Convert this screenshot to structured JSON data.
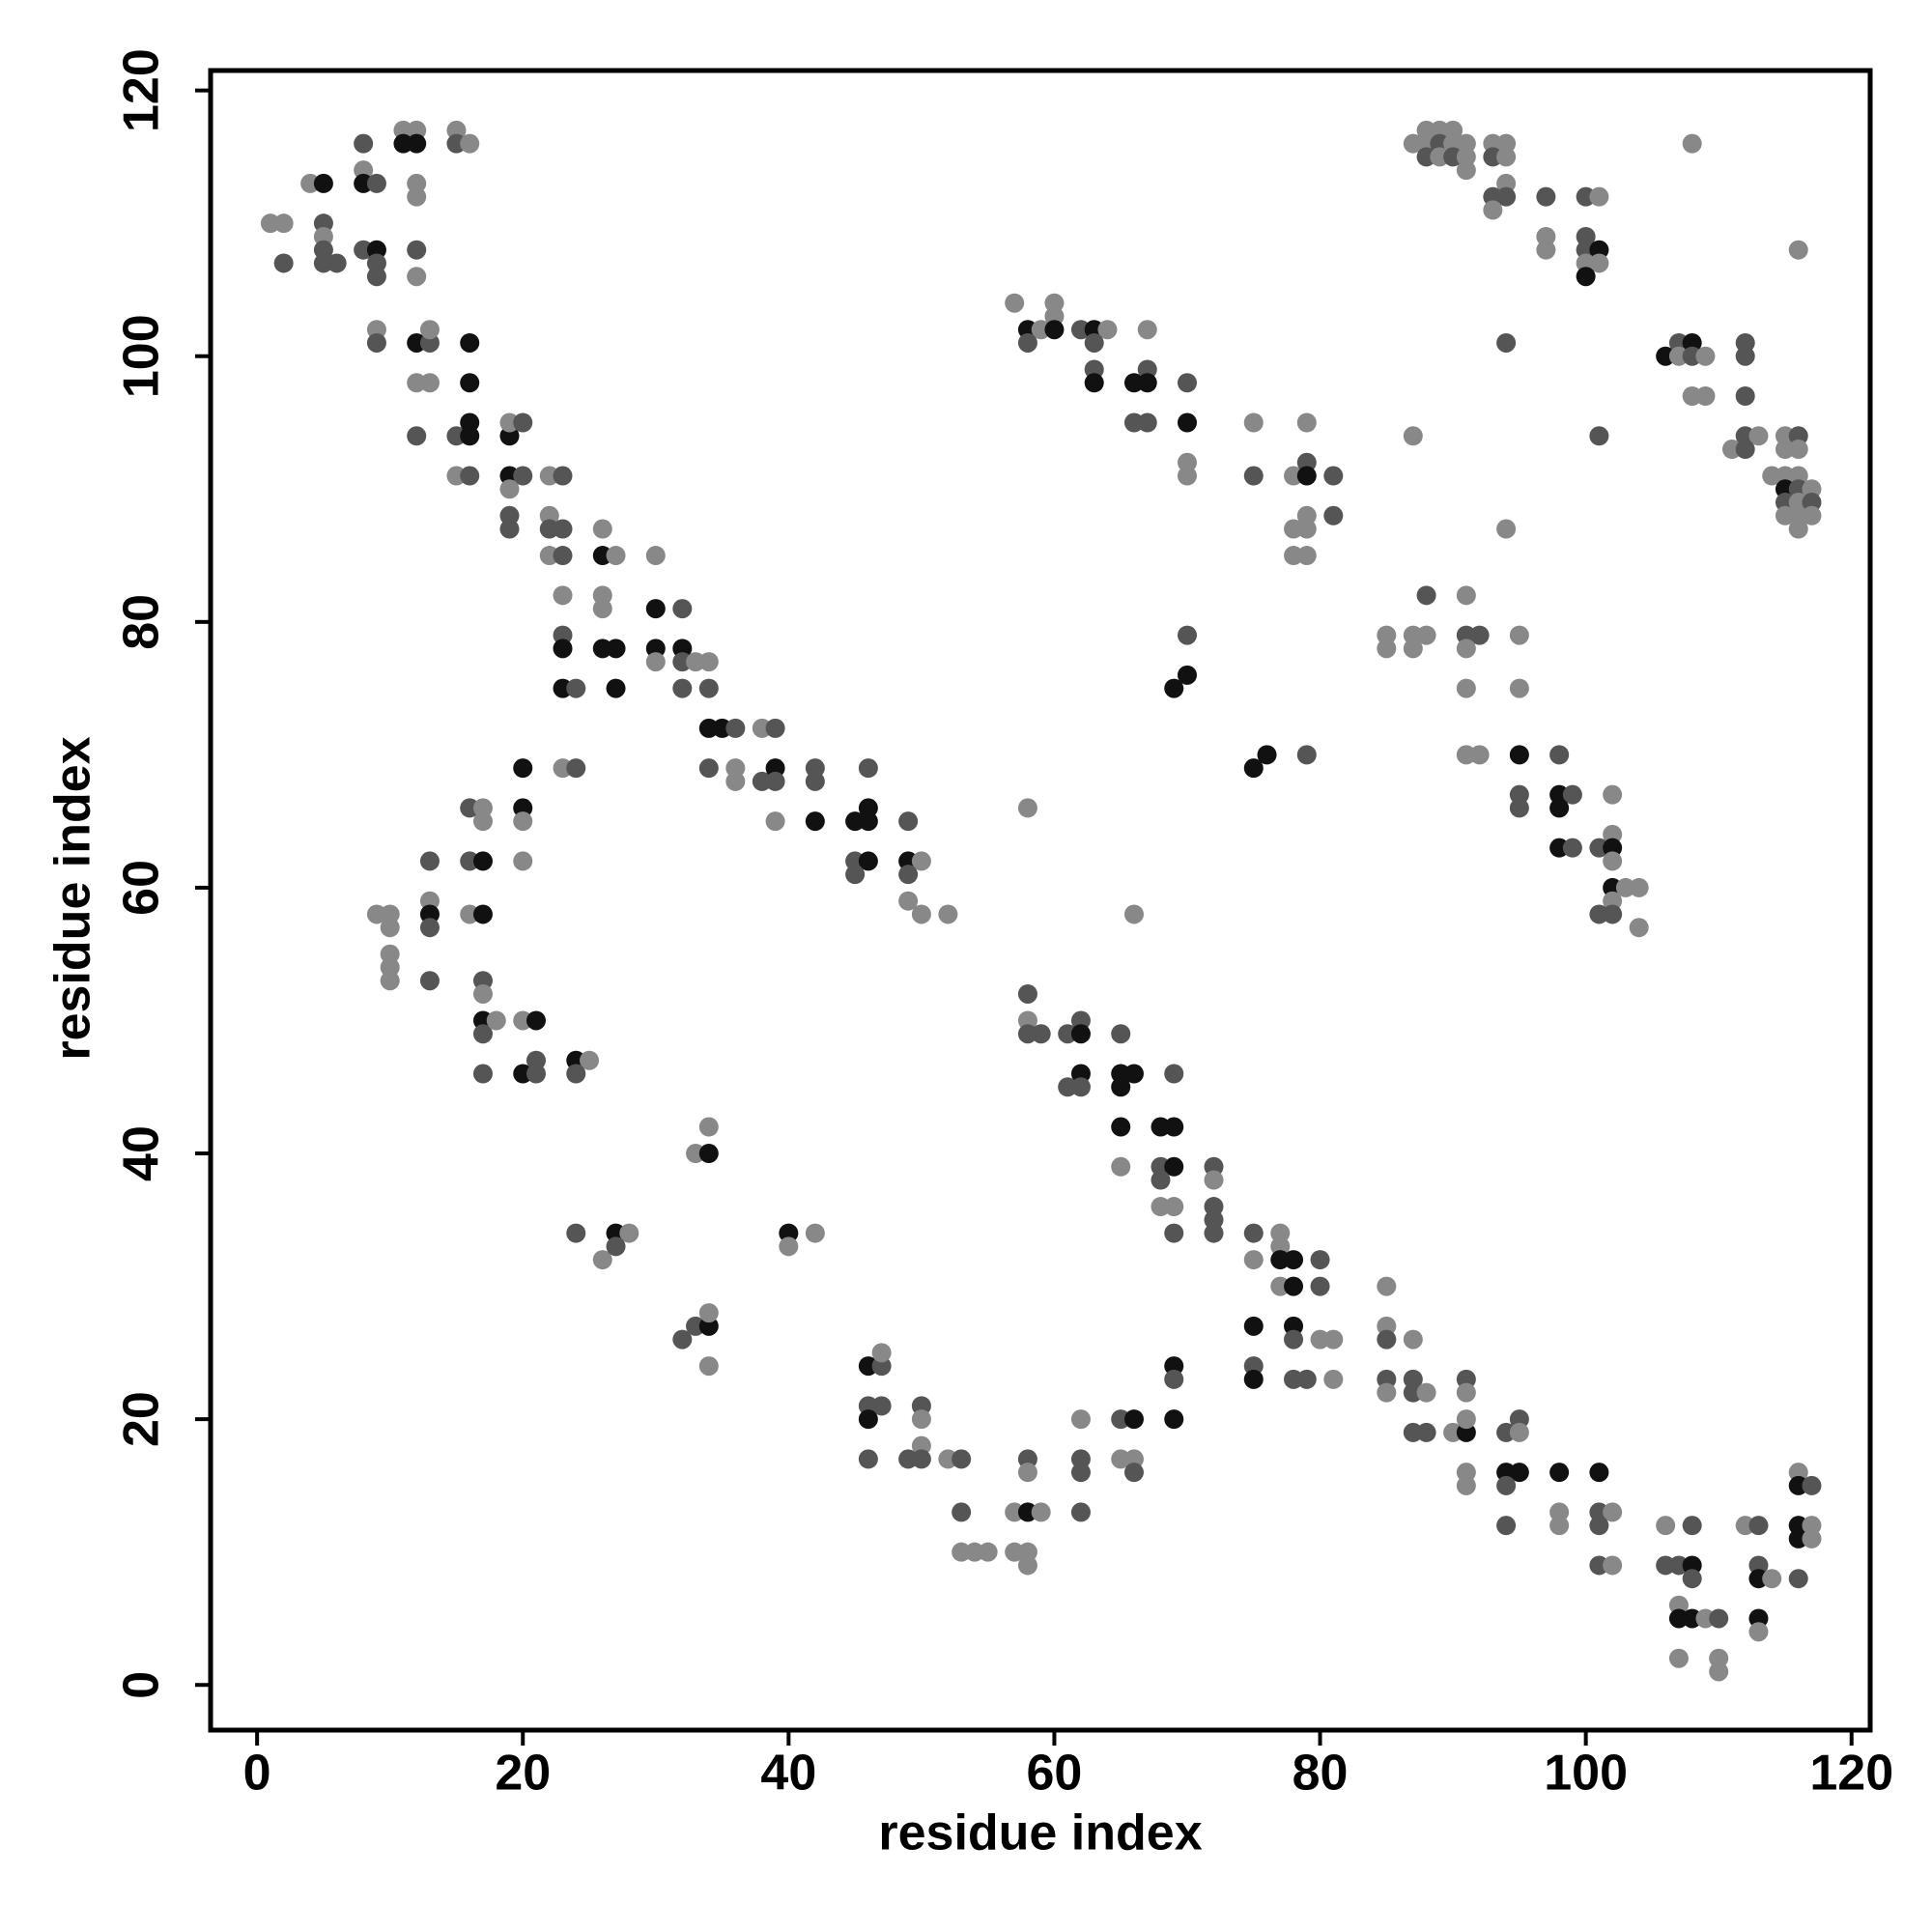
{
  "chart_data": {
    "type": "scatter",
    "xlabel": "residue index",
    "ylabel": "residue index",
    "xlim": [
      -3.5,
      121.4
    ],
    "ylim": [
      -3.4,
      121.5
    ],
    "xticks": [
      0,
      20,
      40,
      60,
      80,
      100,
      120
    ],
    "yticks": [
      0,
      20,
      40,
      60,
      80,
      100,
      120
    ],
    "x": [
      1,
      2,
      2,
      4,
      5,
      5,
      5,
      5,
      5,
      6,
      8,
      8,
      8,
      9,
      8,
      9,
      9,
      9,
      11,
      12,
      11,
      12,
      12,
      12,
      12,
      12,
      15,
      15,
      16,
      9,
      9,
      12,
      13,
      13,
      12,
      13,
      16,
      16,
      12,
      15,
      16,
      16,
      15,
      16,
      19,
      19,
      20,
      19,
      20,
      19,
      19,
      19,
      22,
      23,
      22,
      22,
      23,
      22,
      23,
      23,
      23,
      23,
      23,
      24,
      23,
      24,
      26,
      26,
      27,
      26,
      26,
      26,
      27,
      27,
      30,
      30,
      32,
      30,
      30,
      32,
      32,
      32,
      33,
      34,
      34,
      34,
      35,
      36,
      34,
      36,
      36,
      38,
      39,
      38,
      39,
      39,
      39,
      42,
      42,
      42,
      45,
      46,
      46,
      46,
      45,
      46,
      45,
      49,
      49,
      50,
      49,
      49,
      50,
      52,
      9,
      10,
      10,
      10,
      10,
      10,
      13,
      13,
      13,
      13,
      13,
      16,
      17,
      17,
      16,
      17,
      16,
      17,
      17,
      17,
      17,
      17,
      18,
      17,
      20,
      20,
      20,
      20,
      20,
      21,
      20,
      21,
      21,
      24,
      25,
      24,
      34,
      33,
      34,
      24,
      26,
      27,
      28,
      27,
      40,
      40,
      42,
      32,
      33,
      34,
      34,
      34,
      46,
      47,
      47,
      46,
      47,
      46,
      46,
      50,
      50,
      50,
      49,
      50,
      52,
      53,
      53,
      53,
      54,
      55,
      57,
      58,
      59,
      57,
      58,
      58,
      58,
      58,
      62,
      62,
      62,
      62,
      65,
      66,
      65,
      66,
      66,
      69,
      69,
      69,
      58,
      66,
      58,
      58,
      58,
      59,
      61,
      62,
      62,
      62,
      61,
      62,
      65,
      65,
      66,
      65,
      65,
      65,
      69,
      68,
      69,
      68,
      69,
      68,
      68,
      69,
      69,
      72,
      72,
      72,
      72,
      72,
      75,
      75,
      77,
      77,
      77,
      78,
      77,
      78,
      80,
      80,
      75,
      78,
      78,
      80,
      81,
      75,
      75,
      78,
      79,
      81,
      85,
      85,
      85,
      87,
      85,
      87,
      85,
      87,
      88,
      87,
      88,
      90,
      91,
      91,
      91,
      91,
      91,
      91,
      94,
      95,
      95,
      94,
      95,
      94,
      94,
      98,
      98,
      98,
      101,
      101,
      102,
      101,
      101,
      102,
      106,
      106,
      107,
      108,
      108,
      108,
      107,
      107,
      108,
      109,
      110,
      107,
      110,
      110,
      112,
      113,
      113,
      113,
      114,
      113,
      113,
      116,
      116,
      117,
      116,
      117,
      116,
      117,
      116,
      57,
      60,
      60,
      58,
      59,
      60,
      58,
      62,
      63,
      64,
      63,
      63,
      63,
      67,
      66,
      67,
      67,
      66,
      67,
      70,
      70,
      70,
      70,
      75,
      75,
      78,
      79,
      79,
      79,
      81,
      79,
      81,
      78,
      79,
      78,
      79,
      70,
      70,
      69,
      75,
      76,
      79,
      87,
      85,
      85,
      87,
      87,
      88,
      88,
      91,
      91,
      92,
      91,
      91,
      91,
      92,
      95,
      95,
      95,
      95,
      95,
      94,
      98,
      98,
      99,
      98,
      98,
      99,
      102,
      102,
      101,
      102,
      102,
      102,
      103,
      104,
      102,
      101,
      102,
      104,
      87,
      88,
      89,
      90,
      88,
      89,
      90,
      91,
      88,
      89,
      90,
      91,
      91,
      93,
      94,
      93,
      94,
      94,
      93,
      94,
      93,
      97,
      97,
      97,
      100,
      101,
      100,
      100,
      101,
      100,
      101,
      100,
      94,
      106,
      107,
      108,
      107,
      108,
      109,
      108,
      109,
      112,
      112,
      112,
      112,
      113,
      111,
      112,
      101,
      108,
      116,
      114,
      115,
      116,
      115,
      116,
      115,
      116,
      115,
      116,
      117,
      115,
      116,
      117,
      115,
      116,
      117,
      116
    ],
    "y": [
      110,
      110,
      107,
      113,
      113,
      110,
      109,
      108,
      107,
      107,
      116,
      114,
      113,
      113,
      108,
      108,
      107,
      106,
      117,
      117,
      116,
      116,
      113,
      112,
      108,
      106,
      117,
      116,
      116,
      102,
      101,
      101,
      101,
      102,
      98,
      98,
      101,
      98,
      94,
      94,
      94,
      95,
      91,
      91,
      94,
      95,
      95,
      91,
      91,
      90,
      88,
      87,
      91,
      91,
      88,
      87,
      87,
      85,
      85,
      82,
      79,
      78,
      75,
      75,
      69,
      69,
      87,
      85,
      85,
      82,
      81,
      78,
      78,
      75,
      85,
      81,
      81,
      78,
      77,
      78,
      77,
      75,
      77,
      77,
      75,
      72,
      72,
      72,
      69,
      69,
      68,
      72,
      72,
      68,
      69,
      68,
      65,
      69,
      68,
      65,
      65,
      65,
      69,
      66,
      62,
      62,
      61,
      65,
      62,
      62,
      61,
      59,
      58,
      58,
      58,
      58,
      57,
      55,
      54,
      53,
      62,
      59,
      58,
      57,
      53,
      66,
      66,
      65,
      62,
      62,
      58,
      58,
      53,
      52,
      50,
      49,
      50,
      46,
      69,
      66,
      65,
      62,
      50,
      50,
      46,
      47,
      46,
      47,
      47,
      46,
      42,
      40,
      40,
      34,
      32,
      34,
      34,
      33,
      34,
      33,
      34,
      26,
      27,
      27,
      28,
      24,
      24,
      24,
      25,
      21,
      21,
      20,
      17,
      21,
      20,
      18,
      17,
      17,
      17,
      17,
      13,
      10,
      10,
      10,
      13,
      13,
      13,
      10,
      10,
      9,
      17,
      16,
      20,
      17,
      16,
      13,
      20,
      20,
      17,
      17,
      16,
      24,
      23,
      20,
      66,
      58,
      52,
      50,
      49,
      49,
      49,
      50,
      49,
      46,
      45,
      45,
      49,
      46,
      46,
      45,
      42,
      39,
      46,
      42,
      42,
      39,
      39,
      38,
      36,
      36,
      34,
      39,
      38,
      36,
      35,
      34,
      34,
      32,
      34,
      33,
      32,
      32,
      30,
      30,
      32,
      30,
      27,
      27,
      26,
      26,
      26,
      24,
      23,
      23,
      23,
      23,
      30,
      27,
      26,
      26,
      23,
      23,
      22,
      22,
      22,
      19,
      19,
      19,
      19,
      23,
      22,
      20,
      16,
      15,
      19,
      20,
      19,
      16,
      16,
      15,
      12,
      16,
      13,
      12,
      16,
      13,
      13,
      12,
      9,
      9,
      12,
      9,
      9,
      9,
      12,
      8,
      6,
      5,
      5,
      5,
      5,
      2,
      2,
      1,
      12,
      12,
      9,
      8,
      8,
      5,
      4,
      16,
      15,
      15,
      12,
      12,
      11,
      11,
      8,
      104,
      104,
      103,
      102,
      102,
      102,
      101,
      102,
      102,
      102,
      101,
      99,
      98,
      102,
      98,
      99,
      98,
      95,
      95,
      98,
      95,
      92,
      91,
      95,
      91,
      91,
      95,
      92,
      91,
      91,
      88,
      88,
      87,
      87,
      85,
      85,
      79,
      76,
      75,
      69,
      70,
      70,
      94,
      79,
      78,
      79,
      78,
      79,
      82,
      82,
      79,
      79,
      78,
      75,
      70,
      70,
      79,
      75,
      70,
      67,
      66,
      87,
      70,
      67,
      67,
      66,
      63,
      63,
      67,
      64,
      63,
      63,
      62,
      60,
      60,
      60,
      59,
      58,
      58,
      57,
      116,
      117,
      117,
      117,
      116,
      116,
      116,
      116,
      115,
      115,
      115,
      115,
      114,
      116,
      116,
      115,
      115,
      113,
      112,
      112,
      111,
      112,
      109,
      108,
      112,
      112,
      109,
      108,
      108,
      107,
      107,
      106,
      101,
      100,
      101,
      101,
      100,
      100,
      100,
      97,
      97,
      101,
      100,
      97,
      94,
      94,
      93,
      93,
      94,
      116,
      108,
      91,
      91,
      91,
      94,
      94,
      93,
      93,
      90,
      90,
      90,
      89,
      89,
      89,
      88,
      88,
      88,
      87
    ],
    "colors": [
      "#888",
      "#888",
      "#555",
      "#888",
      "#111",
      "#555",
      "#888",
      "#555",
      "#555",
      "#555",
      "#555",
      "#888",
      "#111",
      "#555",
      "#555",
      "#111",
      "#555",
      "#555",
      "#888",
      "#888",
      "#111",
      "#111",
      "#888",
      "#888",
      "#555",
      "#888",
      "#888",
      "#555",
      "#888",
      "#888",
      "#555",
      "#111",
      "#555",
      "#888",
      "#888",
      "#888",
      "#111",
      "#111",
      "#555",
      "#555",
      "#111",
      "#111",
      "#888",
      "#555",
      "#111",
      "#888",
      "#555",
      "#111",
      "#555",
      "#888",
      "#555",
      "#555",
      "#888",
      "#555",
      "#888",
      "#555",
      "#555",
      "#888",
      "#555",
      "#888",
      "#555",
      "#111",
      "#111",
      "#555",
      "#888",
      "#555",
      "#888",
      "#111",
      "#888",
      "#888",
      "#888",
      "#111",
      "#111",
      "#111",
      "#888",
      "#111",
      "#555",
      "#111",
      "#888",
      "#111",
      "#555",
      "#555",
      "#888",
      "#888",
      "#555",
      "#111",
      "#111",
      "#555",
      "#555",
      "#888",
      "#888",
      "#888",
      "#555",
      "#555",
      "#111",
      "#555",
      "#888",
      "#555",
      "#555",
      "#111",
      "#111",
      "#111",
      "#555",
      "#111",
      "#555",
      "#111",
      "#555",
      "#555",
      "#111",
      "#888",
      "#555",
      "#888",
      "#888",
      "#888",
      "#888",
      "#888",
      "#888",
      "#888",
      "#888",
      "#888",
      "#555",
      "#888",
      "#111",
      "#555",
      "#555",
      "#555",
      "#888",
      "#888",
      "#555",
      "#111",
      "#888",
      "#111",
      "#555",
      "#888",
      "#111",
      "#555",
      "#888",
      "#555",
      "#111",
      "#111",
      "#888",
      "#888",
      "#888",
      "#111",
      "#111",
      "#555",
      "#555",
      "#111",
      "#888",
      "#555",
      "#888",
      "#888",
      "#111",
      "#555",
      "#888",
      "#111",
      "#888",
      "#555",
      "#111",
      "#888",
      "#888",
      "#555",
      "#555",
      "#111",
      "#888",
      "#888",
      "#111",
      "#555",
      "#888",
      "#555",
      "#555",
      "#111",
      "#555",
      "#555",
      "#888",
      "#888",
      "#555",
      "#555",
      "#888",
      "#555",
      "#555",
      "#888",
      "#888",
      "#888",
      "#888",
      "#111",
      "#888",
      "#888",
      "#888",
      "#888",
      "#555",
      "#888",
      "#888",
      "#555",
      "#555",
      "#555",
      "#555",
      "#111",
      "#888",
      "#888",
      "#555",
      "#111",
      "#555",
      "#111",
      "#888",
      "#888",
      "#555",
      "#888",
      "#555",
      "#555",
      "#555",
      "#555",
      "#111",
      "#111",
      "#555",
      "#555",
      "#555",
      "#111",
      "#111",
      "#111",
      "#111",
      "#888",
      "#555",
      "#111",
      "#111",
      "#555",
      "#111",
      "#555",
      "#888",
      "#888",
      "#555",
      "#555",
      "#888",
      "#555",
      "#555",
      "#555",
      "#555",
      "#888",
      "#888",
      "#888",
      "#111",
      "#111",
      "#888",
      "#111",
      "#555",
      "#555",
      "#111",
      "#111",
      "#555",
      "#888",
      "#888",
      "#555",
      "#111",
      "#555",
      "#555",
      "#888",
      "#888",
      "#888",
      "#555",
      "#888",
      "#555",
      "#555",
      "#888",
      "#555",
      "#888",
      "#555",
      "#555",
      "#888",
      "#111",
      "#555",
      "#888",
      "#888",
      "#888",
      "#888",
      "#555",
      "#555",
      "#888",
      "#111",
      "#111",
      "#555",
      "#555",
      "#111",
      "#888",
      "#888",
      "#111",
      "#555",
      "#888",
      "#555",
      "#555",
      "#888",
      "#888",
      "#555",
      "#555",
      "#111",
      "#555",
      "#555",
      "#888",
      "#111",
      "#111",
      "#888",
      "#555",
      "#888",
      "#888",
      "#888",
      "#888",
      "#555",
      "#555",
      "#111",
      "#888",
      "#111",
      "#888",
      "#888",
      "#111",
      "#555",
      "#111",
      "#888",
      "#111",
      "#888",
      "#555",
      "#888",
      "#888",
      "#888",
      "#111",
      "#888",
      "#111",
      "#555",
      "#555",
      "#111",
      "#888",
      "#555",
      "#555",
      "#111",
      "#888",
      "#111",
      "#555",
      "#111",
      "#555",
      "#555",
      "#555",
      "#111",
      "#888",
      "#888",
      "#888",
      "#555",
      "#888",
      "#888",
      "#555",
      "#111",
      "#555",
      "#888",
      "#555",
      "#888",
      "#888",
      "#888",
      "#888",
      "#555",
      "#111",
      "#111",
      "#111",
      "#111",
      "#555",
      "#888",
      "#888",
      "#888",
      "#888",
      "#888",
      "#888",
      "#555",
      "#888",
      "#555",
      "#555",
      "#888",
      "#888",
      "#888",
      "#888",
      "#888",
      "#888",
      "#111",
      "#555",
      "#555",
      "#888",
      "#555",
      "#111",
      "#555",
      "#111",
      "#111",
      "#555",
      "#888",
      "#888",
      "#555",
      "#111",
      "#888",
      "#111",
      "#888",
      "#888",
      "#888",
      "#555",
      "#555",
      "#888",
      "#888",
      "#888",
      "#888",
      "#888",
      "#888",
      "#555",
      "#888",
      "#888",
      "#555",
      "#888",
      "#555",
      "#888",
      "#888",
      "#888",
      "#888",
      "#555",
      "#888",
      "#888",
      "#555",
      "#555",
      "#888",
      "#555",
      "#888",
      "#888",
      "#555",
      "#888",
      "#555",
      "#555",
      "#111",
      "#888",
      "#888",
      "#111",
      "#555",
      "#111",
      "#555",
      "#111",
      "#888",
      "#555",
      "#888",
      "#888",
      "#888",
      "#555",
      "#555",
      "#555",
      "#555",
      "#888",
      "#888",
      "#555",
      "#555",
      "#888",
      "#888",
      "#888",
      "#888",
      "#888",
      "#888",
      "#555",
      "#888",
      "#888",
      "#111",
      "#555",
      "#888",
      "#555",
      "#888",
      "#555",
      "#888",
      "#888",
      "#888",
      "#888"
    ]
  }
}
